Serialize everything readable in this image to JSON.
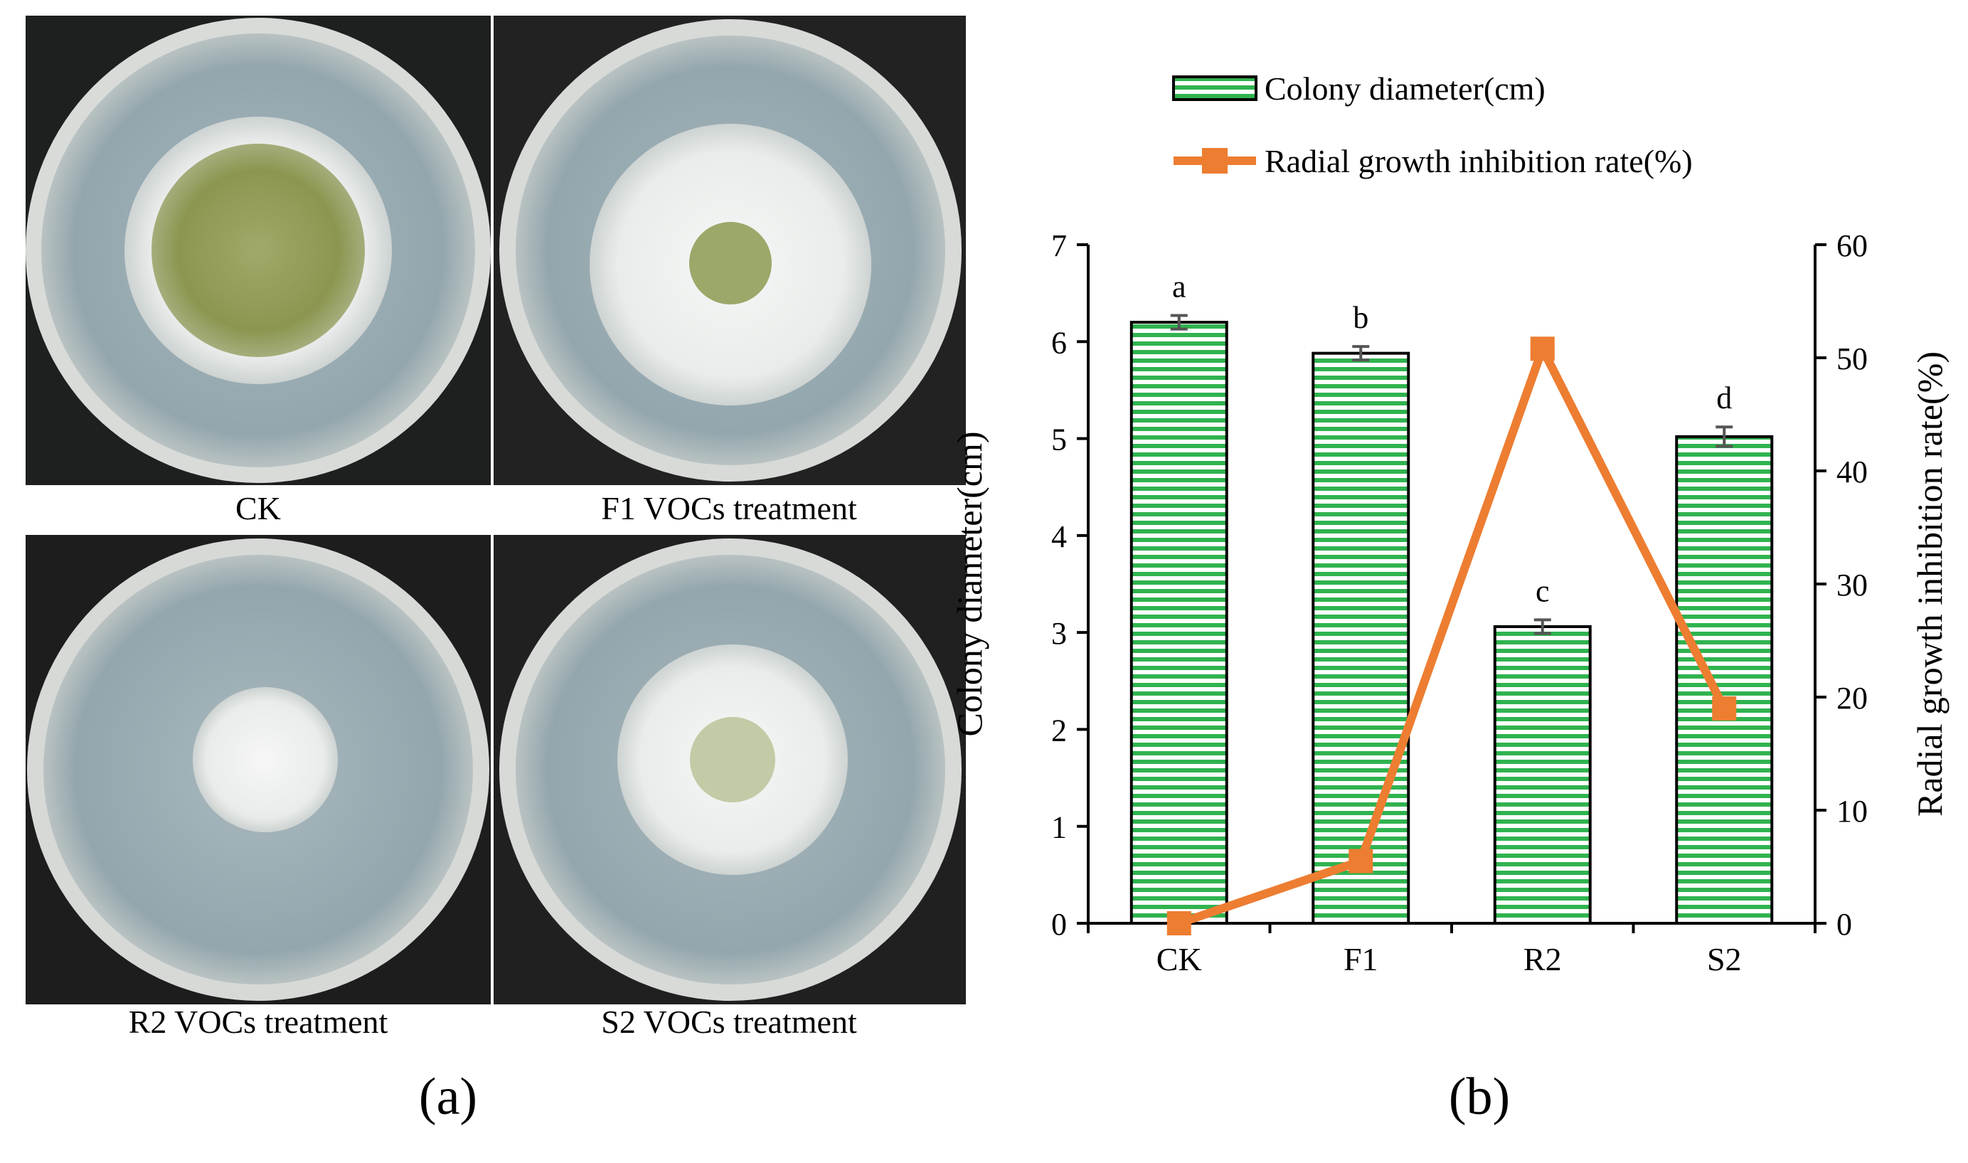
{
  "panel_a": {
    "label": "(a)",
    "photos": [
      {
        "label": "CK",
        "colony": "large olive colony with white margin"
      },
      {
        "label": "F1 VOCs treatment",
        "colony": "white colony with small olive center"
      },
      {
        "label": "R2 VOCs treatment",
        "colony": "small white colony"
      },
      {
        "label": "S2 VOCs treatment",
        "colony": "white colony with faint green center"
      }
    ],
    "colors": {
      "background": "#2a2a2a",
      "agar": "#9fb0b6",
      "dish_rim": "#d9dcda",
      "olive": "#8f9a4a",
      "mycelium": "#eef0ee"
    }
  },
  "panel_b": {
    "label": "(b)",
    "legend": {
      "bar_label": "Colony diameter(cm)",
      "line_label": "Radial growth inhibition rate(%)"
    },
    "colors": {
      "bar_fill": "#2fb34f",
      "bar_stripe_bg": "#ffffff",
      "line": "#ed7d31",
      "axis": "#000000"
    }
  },
  "chart_data": {
    "type": "bar",
    "categories": [
      "CK",
      "F1",
      "R2",
      "S2"
    ],
    "series": [
      {
        "name": "Colony diameter(cm)",
        "type": "bar",
        "axis": "left",
        "values": [
          6.2,
          5.88,
          3.06,
          5.02
        ],
        "errors": [
          0.07,
          0.07,
          0.07,
          0.1
        ],
        "significance": [
          "a",
          "b",
          "c",
          "d"
        ]
      },
      {
        "name": "Radial growth inhibition rate(%)",
        "type": "line",
        "axis": "right",
        "values": [
          0,
          5.5,
          50.8,
          19
        ]
      }
    ],
    "ylabel": "Colony diameter(cm)",
    "ylabel_right": "Radial growth inhibition rate(%)",
    "ylim": [
      0,
      7
    ],
    "yticks": [
      0,
      1,
      2,
      3,
      4,
      5,
      6,
      7
    ],
    "ylim_right": [
      0,
      60
    ],
    "yticks_right": [
      0,
      10,
      20,
      30,
      40,
      50,
      60
    ],
    "legend_position": "top"
  }
}
